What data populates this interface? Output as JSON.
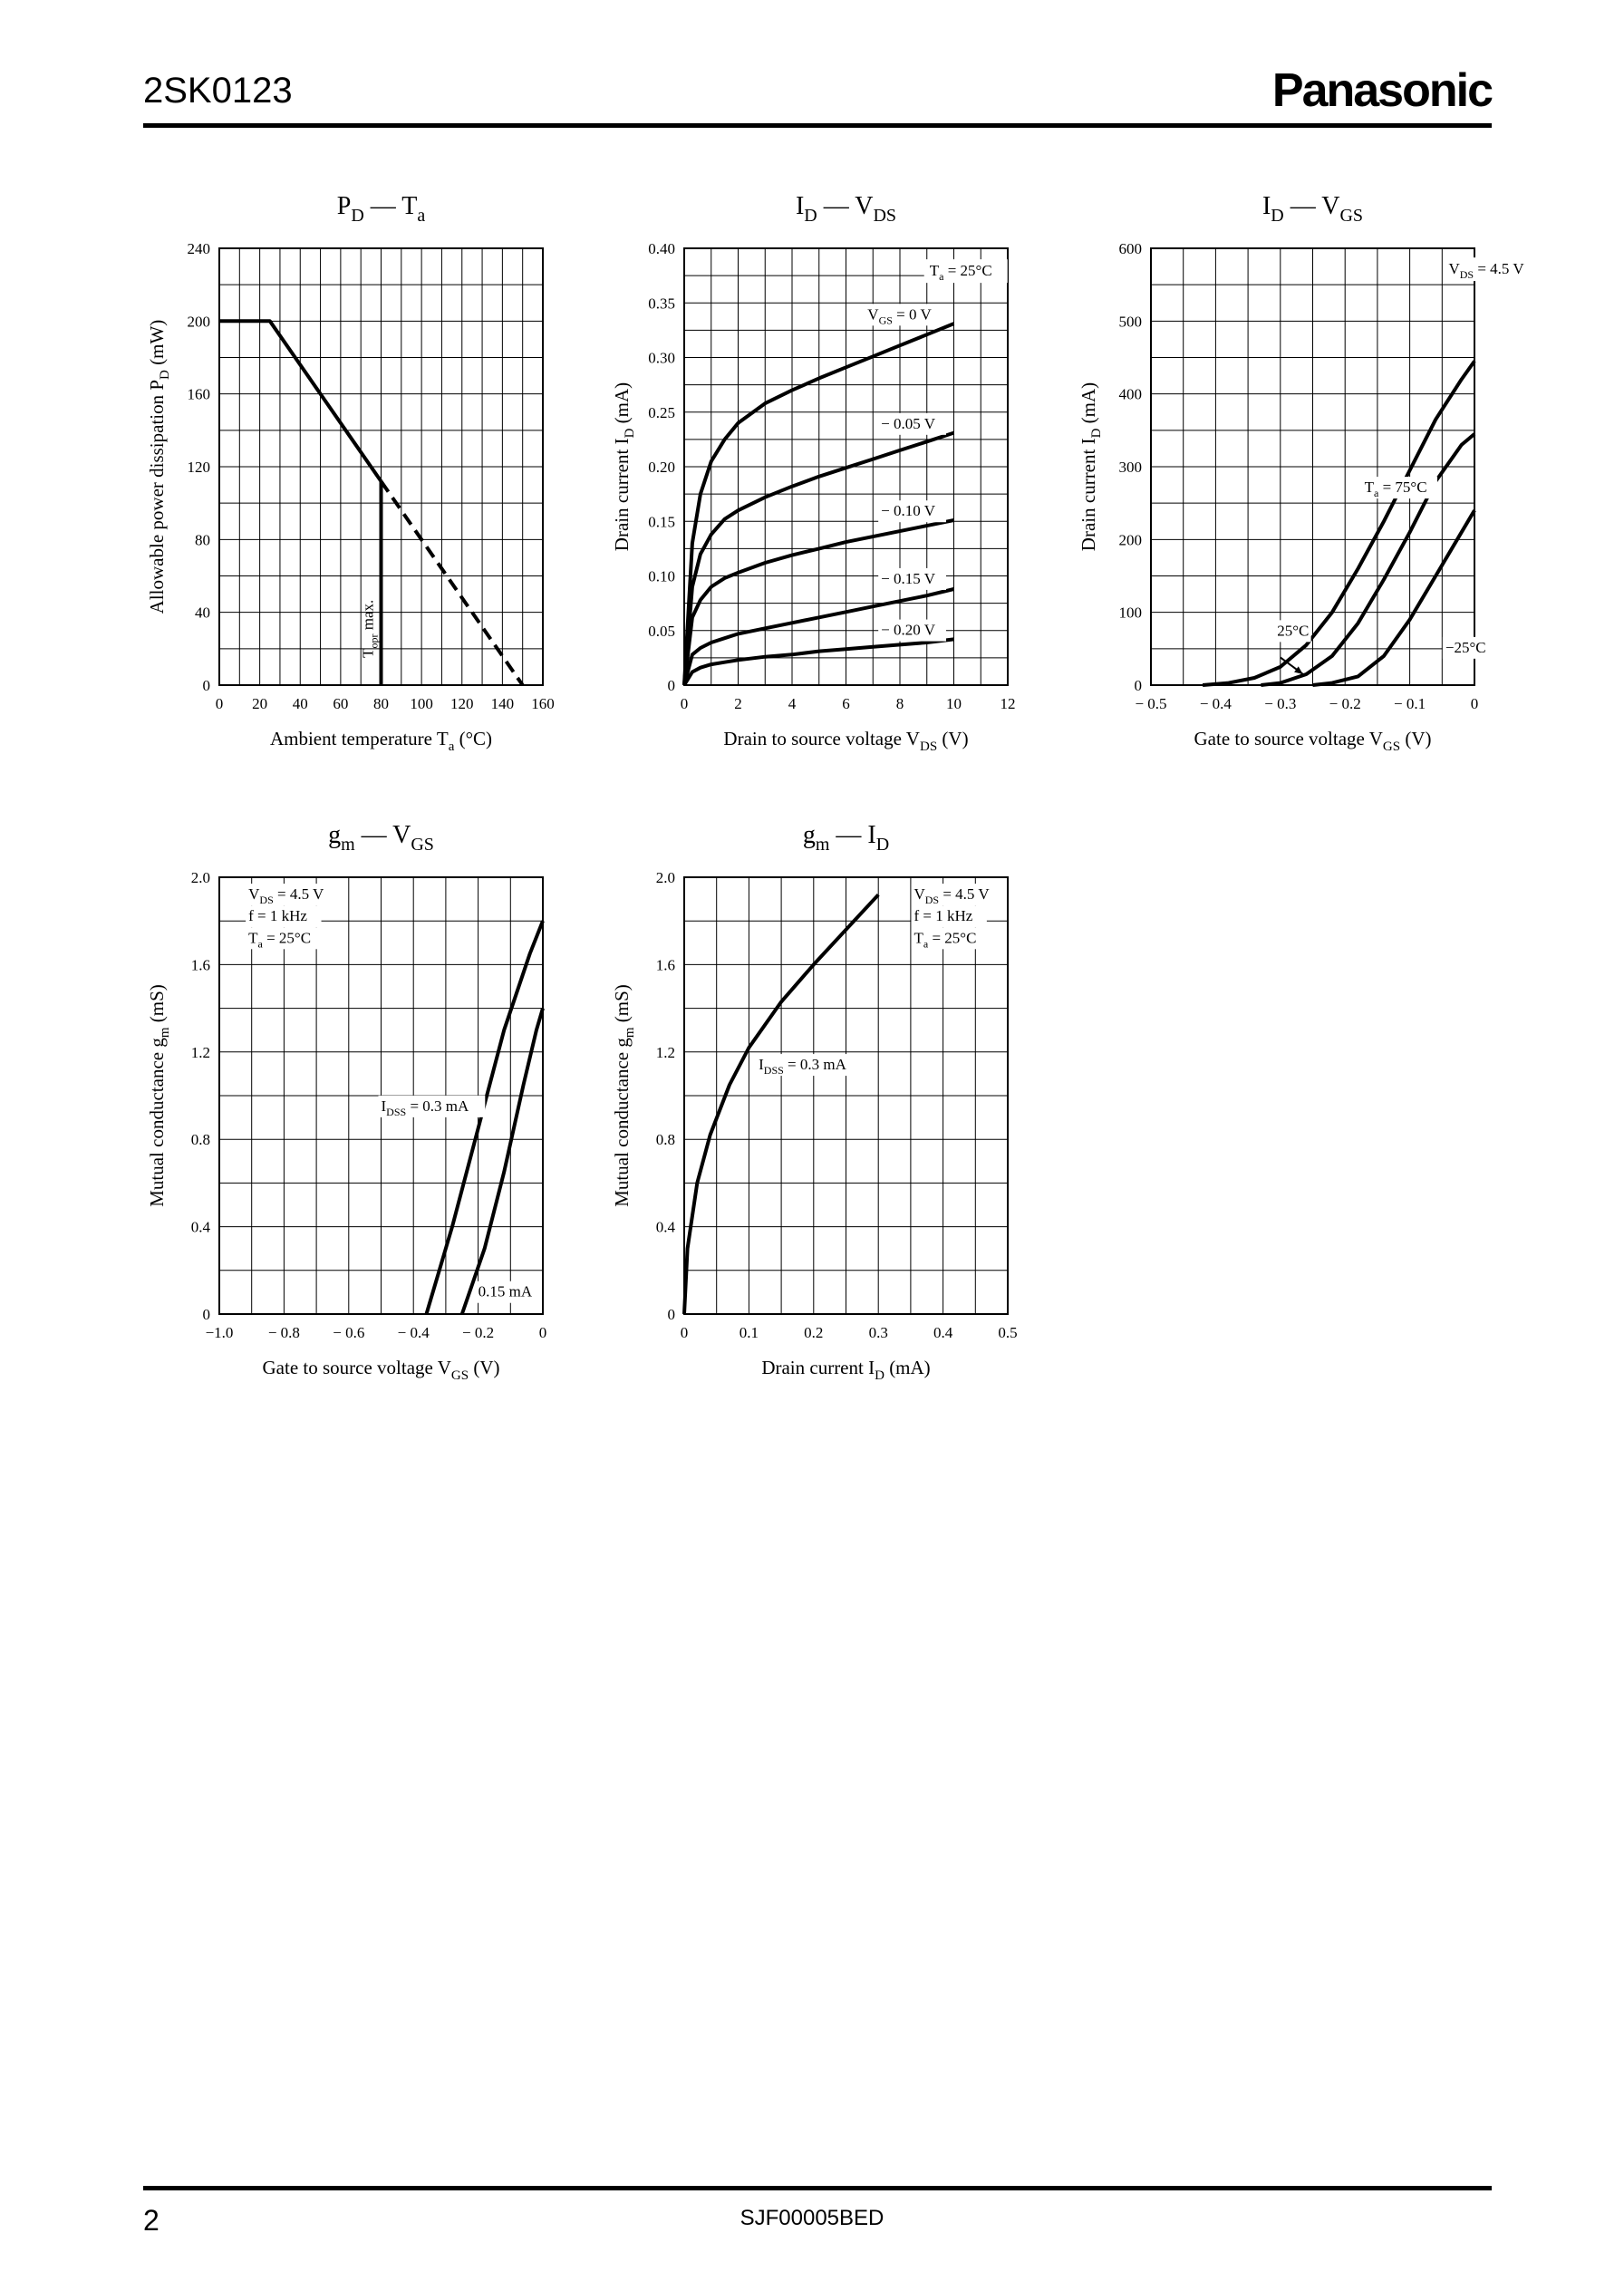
{
  "header": {
    "part_number": "2SK0123",
    "brand": "Panasonic"
  },
  "footer": {
    "page": "2",
    "doc_code": "SJF00005BED"
  },
  "chart_data": [
    {
      "type": "line",
      "title": [
        [
          "P",
          "D"
        ],
        [
          " — T",
          "a"
        ]
      ],
      "ylabel": [
        "Allowable power dissipation  P",
        "D",
        "  (mW)"
      ],
      "xlabel": [
        "Ambient temperature   T",
        "a",
        "  (°C)"
      ],
      "xlim": [
        0,
        160
      ],
      "ylim": [
        0,
        240
      ],
      "xticks": [
        0,
        20,
        40,
        60,
        80,
        100,
        120,
        140,
        160
      ],
      "xtick_labels": [
        "0",
        "20",
        "40",
        "60",
        "80",
        "100",
        "120",
        "140",
        "160"
      ],
      "yticks": [
        0,
        40,
        80,
        120,
        160,
        200,
        240
      ],
      "ytick_labels": [
        "0",
        "40",
        "80",
        "120",
        "160",
        "200",
        "240"
      ],
      "grid": true,
      "series": [
        {
          "style": "solid",
          "x": [
            0,
            25,
            80
          ],
          "y": [
            200,
            200,
            112
          ]
        },
        {
          "style": "dashed",
          "x": [
            80,
            150
          ],
          "y": [
            112,
            0
          ]
        },
        {
          "style": "solid",
          "x": [
            80,
            80
          ],
          "y": [
            112,
            0
          ]
        }
      ],
      "annotations": [
        {
          "parts": [
            "T",
            "opr",
            " max."
          ],
          "x": 76,
          "y": 15,
          "rotate": true
        }
      ]
    },
    {
      "type": "line",
      "title": [
        [
          "I",
          "D"
        ],
        [
          " — V",
          "DS"
        ]
      ],
      "ylabel": [
        "Drain current  I",
        "D",
        "  (mA)"
      ],
      "xlabel": [
        "Drain to source voltage   V",
        "DS",
        "  (V)"
      ],
      "xlim": [
        0,
        12
      ],
      "ylim": [
        0,
        0.4
      ],
      "xticks": [
        0,
        2,
        4,
        6,
        8,
        10,
        12
      ],
      "xtick_labels": [
        "0",
        "2",
        "4",
        "6",
        "8",
        "10",
        "12"
      ],
      "yticks": [
        0,
        0.05,
        0.1,
        0.15,
        0.2,
        0.25,
        0.3,
        0.35,
        0.4
      ],
      "ytick_labels": [
        "0",
        "0.05",
        "0.10",
        "0.15",
        "0.20",
        "0.25",
        "0.30",
        "0.35",
        "0.40"
      ],
      "grid": true,
      "series": [
        {
          "name": "V_GS = 0 V",
          "x": [
            0,
            0.3,
            0.6,
            1,
            1.5,
            2,
            3,
            4,
            5,
            6,
            7,
            8,
            9,
            10
          ],
          "y": [
            0,
            0.13,
            0.175,
            0.205,
            0.225,
            0.24,
            0.258,
            0.27,
            0.281,
            0.291,
            0.301,
            0.311,
            0.321,
            0.331
          ]
        },
        {
          "name": "−0.05 V",
          "x": [
            0,
            0.3,
            0.6,
            1,
            1.5,
            2,
            3,
            4,
            5,
            6,
            7,
            8,
            9,
            10
          ],
          "y": [
            0,
            0.09,
            0.12,
            0.138,
            0.152,
            0.16,
            0.172,
            0.182,
            0.191,
            0.199,
            0.207,
            0.215,
            0.223,
            0.231
          ]
        },
        {
          "name": "−0.10 V",
          "x": [
            0,
            0.3,
            0.6,
            1,
            1.5,
            2,
            3,
            4,
            5,
            6,
            7,
            8,
            9,
            10
          ],
          "y": [
            0,
            0.062,
            0.078,
            0.09,
            0.098,
            0.103,
            0.112,
            0.119,
            0.125,
            0.131,
            0.136,
            0.141,
            0.146,
            0.151
          ]
        },
        {
          "name": "−0.15 V",
          "x": [
            0,
            0.3,
            0.6,
            1,
            1.5,
            2,
            3,
            4,
            5,
            6,
            7,
            8,
            9,
            10
          ],
          "y": [
            0,
            0.028,
            0.034,
            0.039,
            0.043,
            0.047,
            0.052,
            0.057,
            0.062,
            0.067,
            0.072,
            0.077,
            0.082,
            0.088
          ]
        },
        {
          "name": "−0.20 V",
          "x": [
            0,
            0.3,
            0.6,
            1,
            1.5,
            2,
            3,
            4,
            5,
            6,
            7,
            8,
            9,
            10
          ],
          "y": [
            0,
            0.012,
            0.016,
            0.019,
            0.021,
            0.023,
            0.026,
            0.028,
            0.031,
            0.033,
            0.035,
            0.037,
            0.039,
            0.042
          ]
        }
      ],
      "annotations": [
        {
          "parts": [
            "T",
            "a",
            " = 25°C"
          ],
          "x": 9.1,
          "y": 0.375,
          "boxed": true
        },
        {
          "parts": [
            "V",
            "GS",
            " = 0 V"
          ],
          "x": 6.8,
          "y": 0.335
        },
        {
          "parts": [
            "− 0.05 V"
          ],
          "x": 7.3,
          "y": 0.235
        },
        {
          "parts": [
            "− 0.10 V"
          ],
          "x": 7.3,
          "y": 0.155
        },
        {
          "parts": [
            "− 0.15 V"
          ],
          "x": 7.3,
          "y": 0.093
        },
        {
          "parts": [
            "− 0.20 V"
          ],
          "x": 7.3,
          "y": 0.046
        }
      ]
    },
    {
      "type": "line",
      "title": [
        [
          "I",
          "D"
        ],
        [
          " — V",
          "GS"
        ]
      ],
      "ylabel": [
        "Drain current  I",
        "D",
        "  (mA)"
      ],
      "xlabel": [
        "Gate to source voltage   V",
        "GS",
        "  (V)"
      ],
      "xlim": [
        -0.5,
        0
      ],
      "ylim": [
        0,
        600
      ],
      "xticks": [
        -0.5,
        -0.4,
        -0.3,
        -0.2,
        -0.1,
        0
      ],
      "xtick_labels": [
        "− 0.5",
        "− 0.4",
        "− 0.3",
        "− 0.2",
        "− 0.1",
        "0"
      ],
      "yticks": [
        0,
        100,
        200,
        300,
        400,
        500,
        600
      ],
      "ytick_labels": [
        "0",
        "100",
        "200",
        "300",
        "400",
        "500",
        "600"
      ],
      "grid": true,
      "series": [
        {
          "name": "T_a = 75°C",
          "x": [
            -0.42,
            -0.38,
            -0.34,
            -0.3,
            -0.26,
            -0.22,
            -0.18,
            -0.14,
            -0.1,
            -0.06,
            -0.02,
            0
          ],
          "y": [
            0,
            3,
            10,
            25,
            55,
            100,
            160,
            225,
            295,
            365,
            420,
            445
          ]
        },
        {
          "name": "25°C",
          "x": [
            -0.33,
            -0.3,
            -0.26,
            -0.22,
            -0.18,
            -0.14,
            -0.1,
            -0.06,
            -0.02,
            0
          ],
          "y": [
            0,
            3,
            15,
            40,
            85,
            145,
            210,
            280,
            330,
            345
          ]
        },
        {
          "name": "−25°C",
          "x": [
            -0.25,
            -0.22,
            -0.18,
            -0.14,
            -0.1,
            -0.06,
            -0.02,
            0
          ],
          "y": [
            0,
            3,
            12,
            40,
            90,
            150,
            210,
            240
          ]
        }
      ],
      "annotations": [
        {
          "parts": [
            "V",
            "DS",
            " = 4.5 V"
          ],
          "x": -0.04,
          "y": 565,
          "boxed": true
        },
        {
          "parts": [
            "T",
            "a",
            " = 75°C"
          ],
          "x": -0.17,
          "y": 265
        },
        {
          "parts": [
            "25°C"
          ],
          "x": -0.305,
          "y": 68
        },
        {
          "parts": [
            "−25°C"
          ],
          "x": -0.045,
          "y": 45
        }
      ],
      "arrows": [
        {
          "from": [
            -0.3,
            38
          ],
          "to": [
            -0.265,
            15
          ]
        }
      ]
    },
    {
      "type": "line",
      "title": [
        [
          "g",
          "m"
        ],
        [
          " — V",
          "GS"
        ]
      ],
      "ylabel": [
        "Mutual conductance  g",
        "m",
        "  (mS)"
      ],
      "xlabel": [
        "Gate to source voltage   V",
        "GS",
        "  (V)"
      ],
      "xlim": [
        -1.0,
        0
      ],
      "ylim": [
        0,
        2.0
      ],
      "xticks": [
        -1.0,
        -0.8,
        -0.6,
        -0.4,
        -0.2,
        0
      ],
      "xtick_labels": [
        "−1.0",
        "− 0.8",
        "− 0.6",
        "− 0.4",
        "− 0.2",
        "0"
      ],
      "yticks": [
        0,
        0.4,
        0.8,
        1.2,
        1.6,
        2.0
      ],
      "ytick_labels": [
        "0",
        "0.4",
        "0.8",
        "1.2",
        "1.6",
        "2.0"
      ],
      "grid": true,
      "series": [
        {
          "name": "I_DSS = 0.3 mA",
          "x": [
            -0.36,
            -0.28,
            -0.2,
            -0.12,
            -0.04,
            0
          ],
          "y": [
            0,
            0.4,
            0.85,
            1.3,
            1.65,
            1.8
          ]
        },
        {
          "name": "0.15 mA",
          "x": [
            -0.25,
            -0.18,
            -0.12,
            -0.06,
            -0.02,
            0
          ],
          "y": [
            0,
            0.3,
            0.65,
            1.05,
            1.3,
            1.4
          ]
        }
      ],
      "annotations": [
        {
          "parts": [
            "V",
            "DS",
            " = 4.5 V"
          ],
          "x": -0.91,
          "y": 1.9
        },
        {
          "parts": [
            "f = 1 kHz"
          ],
          "x": -0.91,
          "y": 1.8
        },
        {
          "parts": [
            "T",
            "a",
            " = 25°C"
          ],
          "x": -0.91,
          "y": 1.7
        },
        {
          "parts": [
            "I",
            "DSS",
            " = 0.3 mA"
          ],
          "x": -0.5,
          "y": 0.93
        },
        {
          "parts": [
            "0.15 mA"
          ],
          "x": -0.2,
          "y": 0.08
        }
      ]
    },
    {
      "type": "line",
      "title": [
        [
          "g",
          "m"
        ],
        [
          " — I",
          "D"
        ]
      ],
      "ylabel": [
        "Mutual conductance  g",
        "m",
        "  (mS)"
      ],
      "xlabel": [
        "Drain current  I",
        "D",
        "  (mA)"
      ],
      "xlim": [
        0,
        0.5
      ],
      "ylim": [
        0,
        2.0
      ],
      "xticks": [
        0,
        0.1,
        0.2,
        0.3,
        0.4,
        0.5
      ],
      "xtick_labels": [
        "0",
        "0.1",
        "0.2",
        "0.3",
        "0.4",
        "0.5"
      ],
      "yticks": [
        0,
        0.4,
        0.8,
        1.2,
        1.6,
        2.0
      ],
      "ytick_labels": [
        "0",
        "0.4",
        "0.8",
        "1.2",
        "1.6",
        "2.0"
      ],
      "grid": true,
      "series": [
        {
          "name": "I_DSS = 0.3 mA",
          "x": [
            0,
            0.005,
            0.02,
            0.04,
            0.07,
            0.1,
            0.15,
            0.2,
            0.25,
            0.3
          ],
          "y": [
            0,
            0.3,
            0.6,
            0.82,
            1.05,
            1.22,
            1.43,
            1.6,
            1.76,
            1.92
          ]
        }
      ],
      "annotations": [
        {
          "parts": [
            "V",
            "DS",
            " = 4.5 V"
          ],
          "x": 0.355,
          "y": 1.9
        },
        {
          "parts": [
            "f = 1 kHz"
          ],
          "x": 0.355,
          "y": 1.8
        },
        {
          "parts": [
            "T",
            "a",
            " = 25°C"
          ],
          "x": 0.355,
          "y": 1.7
        },
        {
          "parts": [
            "I",
            "DSS",
            " = 0.3 mA"
          ],
          "x": 0.115,
          "y": 1.12
        }
      ]
    }
  ]
}
